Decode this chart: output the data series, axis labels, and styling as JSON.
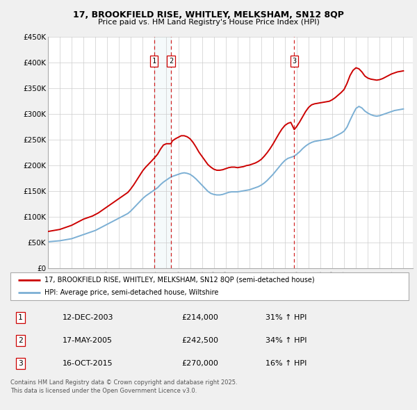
{
  "title1": "17, BROOKFIELD RISE, WHITLEY, MELKSHAM, SN12 8QP",
  "title2": "Price paid vs. HM Land Registry's House Price Index (HPI)",
  "ylim": [
    0,
    450000
  ],
  "yticks": [
    0,
    50000,
    100000,
    150000,
    200000,
    250000,
    300000,
    350000,
    400000,
    450000
  ],
  "ytick_labels": [
    "£0",
    "£50K",
    "£100K",
    "£150K",
    "£200K",
    "£250K",
    "£300K",
    "£350K",
    "£400K",
    "£450K"
  ],
  "xlim_start": 1995.0,
  "xlim_end": 2025.8,
  "sale_dates": [
    2003.95,
    2005.38,
    2015.79
  ],
  "sale_prices": [
    214000,
    242500,
    270000
  ],
  "sale_labels": [
    "1",
    "2",
    "3"
  ],
  "sale_info": [
    {
      "num": "1",
      "date": "12-DEC-2003",
      "price": "£214,000",
      "pct": "31% ↑ HPI"
    },
    {
      "num": "2",
      "date": "17-MAY-2005",
      "price": "£242,500",
      "pct": "34% ↑ HPI"
    },
    {
      "num": "3",
      "date": "16-OCT-2015",
      "price": "£270,000",
      "pct": "16% ↑ HPI"
    }
  ],
  "legend_property": "17, BROOKFIELD RISE, WHITLEY, MELKSHAM, SN12 8QP (semi-detached house)",
  "legend_hpi": "HPI: Average price, semi-detached house, Wiltshire",
  "footer": "Contains HM Land Registry data © Crown copyright and database right 2025.\nThis data is licensed under the Open Government Licence v3.0.",
  "property_color": "#cc0000",
  "hpi_color": "#7bafd4",
  "vline_color": "#cc0000",
  "fig_facecolor": "#f0f0f0",
  "plot_facecolor": "#ffffff",
  "grid_color": "#cccccc",
  "property_years": [
    1995.0,
    1995.25,
    1995.5,
    1995.75,
    1996.0,
    1996.25,
    1996.5,
    1996.75,
    1997.0,
    1997.25,
    1997.5,
    1997.75,
    1998.0,
    1998.25,
    1998.5,
    1998.75,
    1999.0,
    1999.25,
    1999.5,
    1999.75,
    2000.0,
    2000.25,
    2000.5,
    2000.75,
    2001.0,
    2001.25,
    2001.5,
    2001.75,
    2002.0,
    2002.25,
    2002.5,
    2002.75,
    2003.0,
    2003.25,
    2003.5,
    2003.75,
    2003.95,
    2004.25,
    2004.5,
    2004.75,
    2005.0,
    2005.38,
    2005.5,
    2005.75,
    2006.0,
    2006.25,
    2006.5,
    2006.75,
    2007.0,
    2007.25,
    2007.5,
    2007.75,
    2008.0,
    2008.25,
    2008.5,
    2008.75,
    2009.0,
    2009.25,
    2009.5,
    2009.75,
    2010.0,
    2010.25,
    2010.5,
    2010.75,
    2011.0,
    2011.25,
    2011.5,
    2011.75,
    2012.0,
    2012.25,
    2012.5,
    2012.75,
    2013.0,
    2013.25,
    2013.5,
    2013.75,
    2014.0,
    2014.25,
    2014.5,
    2014.75,
    2015.0,
    2015.25,
    2015.5,
    2015.79,
    2016.0,
    2016.25,
    2016.5,
    2016.75,
    2017.0,
    2017.25,
    2017.5,
    2017.75,
    2018.0,
    2018.25,
    2018.5,
    2018.75,
    2019.0,
    2019.25,
    2019.5,
    2019.75,
    2020.0,
    2020.25,
    2020.5,
    2020.75,
    2021.0,
    2021.25,
    2021.5,
    2021.75,
    2022.0,
    2022.25,
    2022.5,
    2022.75,
    2023.0,
    2023.25,
    2023.5,
    2023.75,
    2024.0,
    2024.25,
    2024.5,
    2024.75,
    2025.0
  ],
  "property_prices": [
    72000,
    73000,
    74000,
    75000,
    76000,
    78000,
    80000,
    82000,
    84000,
    87000,
    90000,
    93000,
    96000,
    98000,
    100000,
    102000,
    105000,
    108000,
    112000,
    116000,
    120000,
    124000,
    128000,
    132000,
    136000,
    140000,
    144000,
    148000,
    155000,
    163000,
    172000,
    181000,
    190000,
    197000,
    203000,
    209000,
    214000,
    222000,
    232000,
    240000,
    242500,
    242500,
    248000,
    252000,
    255000,
    258000,
    258000,
    256000,
    252000,
    245000,
    236000,
    226000,
    218000,
    210000,
    202000,
    197000,
    193000,
    191000,
    191000,
    192000,
    194000,
    196000,
    197000,
    197000,
    196000,
    197000,
    198000,
    200000,
    201000,
    203000,
    205000,
    208000,
    212000,
    218000,
    225000,
    233000,
    242000,
    252000,
    262000,
    271000,
    278000,
    282000,
    284000,
    270000,
    276000,
    285000,
    295000,
    305000,
    313000,
    318000,
    320000,
    321000,
    322000,
    323000,
    324000,
    325000,
    328000,
    332000,
    337000,
    342000,
    348000,
    360000,
    375000,
    385000,
    390000,
    388000,
    382000,
    374000,
    370000,
    368000,
    367000,
    366000,
    367000,
    369000,
    372000,
    375000,
    378000,
    380000,
    382000,
    383000,
    384000
  ],
  "hpi_years": [
    1995.0,
    1995.25,
    1995.5,
    1995.75,
    1996.0,
    1996.25,
    1996.5,
    1996.75,
    1997.0,
    1997.25,
    1997.5,
    1997.75,
    1998.0,
    1998.25,
    1998.5,
    1998.75,
    1999.0,
    1999.25,
    1999.5,
    1999.75,
    2000.0,
    2000.25,
    2000.5,
    2000.75,
    2001.0,
    2001.25,
    2001.5,
    2001.75,
    2002.0,
    2002.25,
    2002.5,
    2002.75,
    2003.0,
    2003.25,
    2003.5,
    2003.75,
    2004.0,
    2004.25,
    2004.5,
    2004.75,
    2005.0,
    2005.25,
    2005.5,
    2005.75,
    2006.0,
    2006.25,
    2006.5,
    2006.75,
    2007.0,
    2007.25,
    2007.5,
    2007.75,
    2008.0,
    2008.25,
    2008.5,
    2008.75,
    2009.0,
    2009.25,
    2009.5,
    2009.75,
    2010.0,
    2010.25,
    2010.5,
    2010.75,
    2011.0,
    2011.25,
    2011.5,
    2011.75,
    2012.0,
    2012.25,
    2012.5,
    2012.75,
    2013.0,
    2013.25,
    2013.5,
    2013.75,
    2014.0,
    2014.25,
    2014.5,
    2014.75,
    2015.0,
    2015.25,
    2015.5,
    2015.75,
    2016.0,
    2016.25,
    2016.5,
    2016.75,
    2017.0,
    2017.25,
    2017.5,
    2017.75,
    2018.0,
    2018.25,
    2018.5,
    2018.75,
    2019.0,
    2019.25,
    2019.5,
    2019.75,
    2020.0,
    2020.25,
    2020.5,
    2020.75,
    2021.0,
    2021.25,
    2021.5,
    2021.75,
    2022.0,
    2022.25,
    2022.5,
    2022.75,
    2023.0,
    2023.25,
    2023.5,
    2023.75,
    2024.0,
    2024.25,
    2024.5,
    2024.75,
    2025.0
  ],
  "hpi_prices": [
    52000,
    52500,
    53000,
    53500,
    54000,
    55000,
    56000,
    57000,
    58000,
    60000,
    62000,
    64000,
    66000,
    68000,
    70000,
    72000,
    74000,
    77000,
    80000,
    83000,
    86000,
    89000,
    92000,
    95000,
    98000,
    101000,
    104000,
    107000,
    112000,
    118000,
    124000,
    130000,
    136000,
    141000,
    145000,
    149000,
    153000,
    157000,
    163000,
    168000,
    172000,
    176000,
    179000,
    181000,
    183000,
    185000,
    186000,
    185000,
    183000,
    179000,
    174000,
    168000,
    162000,
    156000,
    150000,
    146000,
    144000,
    143000,
    143000,
    144000,
    146000,
    148000,
    149000,
    149000,
    149000,
    150000,
    151000,
    152000,
    153000,
    155000,
    157000,
    159000,
    162000,
    166000,
    171000,
    177000,
    183000,
    190000,
    197000,
    204000,
    210000,
    214000,
    216000,
    218000,
    222000,
    227000,
    233000,
    238000,
    242000,
    245000,
    247000,
    248000,
    249000,
    250000,
    251000,
    252000,
    254000,
    257000,
    260000,
    263000,
    267000,
    275000,
    288000,
    300000,
    311000,
    315000,
    312000,
    306000,
    302000,
    299000,
    297000,
    296000,
    297000,
    299000,
    301000,
    303000,
    305000,
    307000,
    308000,
    309000,
    310000
  ]
}
